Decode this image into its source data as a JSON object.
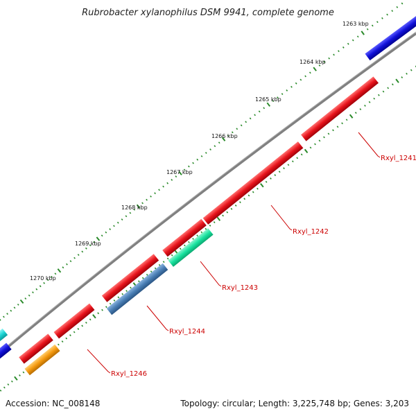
{
  "title": "Rubrobacter xylanophilus DSM 9941, complete genome",
  "footer": {
    "accession": "Accession: NC_008148",
    "info": "Topology: circular; Length: 3,225,748 bp; Genes: 3,203"
  },
  "ticks": [
    "1263 kbp",
    "1264 kbp",
    "1265 kbp",
    "1266 kbp",
    "1267 kbp",
    "1268 kbp",
    "1269 kbp",
    "1270 kbp"
  ],
  "gene_labels": [
    "Rxyl_1241",
    "Rxyl_1242",
    "Rxyl_1243",
    "Rxyl_1244",
    "Rxyl_1246"
  ],
  "colors": {
    "backbone": "#808080",
    "red": "#e8141c",
    "blue": "#1010d8",
    "steel": "#4a7fb5",
    "mint": "#19e3a0",
    "orange": "#f59a10",
    "cyan": "#1ed6d6",
    "tick_dots": "#2a8a2a",
    "label": "#cc0000"
  }
}
